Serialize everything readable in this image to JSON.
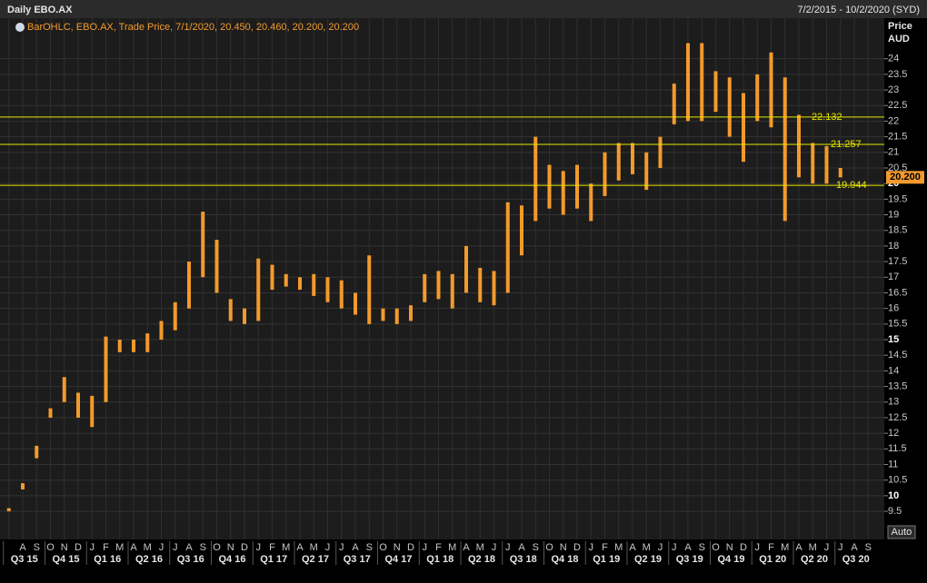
{
  "chart_data": {
    "type": "ohlc",
    "title": "Daily EBO.AX",
    "date_range": "7/2/2015 - 10/2/2020 (SYD)",
    "legend": "BarOHLC, EBO.AX, Trade Price, 7/1/2020, 20.450, 20.460, 20.200, 20.200",
    "y_axis_label": "Price",
    "y_axis_unit": "AUD",
    "auto_button": "Auto",
    "color": "#f39a2c",
    "level_color": "#e6e600",
    "categories": [
      null,
      "A",
      "S",
      "O",
      "N",
      "D",
      "J",
      "F",
      "M",
      "A",
      "M",
      "J",
      "J",
      "A",
      "S",
      "O",
      "N",
      "D",
      "J",
      "F",
      "M",
      "A",
      "M",
      "J",
      "J",
      "A",
      "S",
      "O",
      "N",
      "D",
      "J",
      "F",
      "M",
      "A",
      "M",
      "J",
      "J",
      "A",
      "S",
      "O",
      "N",
      "D",
      "J",
      "F",
      "M",
      "A",
      "M",
      "J",
      "J",
      "A",
      "S",
      "O",
      "N",
      "D",
      "J",
      "F",
      "M",
      "A",
      "M",
      "J",
      "J",
      "A",
      "S"
    ],
    "quarters": [
      "Q3 15",
      "Q4 15",
      "Q1 16",
      "Q2 16",
      "Q3 16",
      "Q4 16",
      "Q1 17",
      "Q2 17",
      "Q3 17",
      "Q4 17",
      "Q1 18",
      "Q2 18",
      "Q3 18",
      "Q4 18",
      "Q1 19",
      "Q2 19",
      "Q3 19",
      "Q4 19",
      "Q1 20",
      "Q2 20",
      "Q3 20"
    ],
    "high": [
      9.6,
      10.4,
      11.6,
      12.8,
      13.8,
      13.3,
      13.2,
      15.1,
      15,
      15,
      15.2,
      15.6,
      16.2,
      17.5,
      19.1,
      18.2,
      16.3,
      16,
      17.6,
      17.4,
      17.1,
      17,
      17.1,
      17,
      16.9,
      16.5,
      17.7,
      16,
      16,
      16.1,
      17.1,
      17.2,
      17.1,
      18,
      17.3,
      17.2,
      19.4,
      19.3,
      21.5,
      20.6,
      20.4,
      20.6,
      20,
      21,
      21.3,
      21.3,
      21,
      21.5,
      23.2,
      24.5,
      24.5,
      23.6,
      23.4,
      22.9,
      23.5,
      24.2,
      23.4,
      22.2,
      21.3,
      21.2,
      20.5,
      null,
      null
    ],
    "low": [
      9.5,
      10.2,
      11.2,
      12.5,
      13,
      12.5,
      12.2,
      13,
      14.6,
      14.6,
      14.6,
      15,
      15.3,
      16,
      17,
      16.5,
      15.6,
      15.5,
      15.6,
      16.6,
      16.7,
      16.6,
      16.4,
      16.2,
      16,
      15.8,
      15.5,
      15.6,
      15.5,
      15.6,
      16.2,
      16.3,
      16,
      16.5,
      16.2,
      16.1,
      16.5,
      17.7,
      18.8,
      19.2,
      19,
      19.2,
      18.8,
      19.6,
      20.1,
      20.3,
      19.8,
      20.5,
      21.9,
      22,
      22,
      22.3,
      21.5,
      20.7,
      22,
      21.8,
      18.8,
      20.2,
      20,
      20,
      20.2,
      null,
      null
    ],
    "levels": [
      22.132,
      21.257,
      19.944
    ],
    "last_price": {
      "value": 20.2,
      "label": "20.200"
    },
    "ylim": [
      8.6,
      25.3
    ],
    "yticks": [
      9.5,
      10,
      10.5,
      11,
      11.5,
      12,
      12.5,
      13,
      13.5,
      14,
      14.5,
      15,
      15.5,
      16,
      16.5,
      17,
      17.5,
      18,
      18.5,
      19,
      19.5,
      20,
      20.5,
      21,
      21.5,
      22,
      22.5,
      23,
      23.5,
      24
    ],
    "grid": true
  }
}
